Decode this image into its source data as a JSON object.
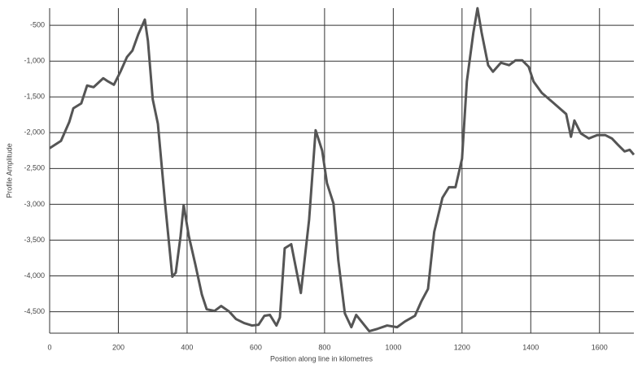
{
  "chart_data": {
    "type": "line",
    "xlabel": "Position along line in kilometres",
    "ylabel": "Profile Amplitude",
    "xlim": [
      0,
      1700
    ],
    "xticks": [
      0,
      200,
      400,
      600,
      800,
      1000,
      1200,
      1400,
      1600
    ],
    "ylim": [
      -4800,
      -260
    ],
    "yticks": [
      -500,
      {
        "value": -1000,
        "label": "-1,000"
      },
      {
        "value": -1500,
        "label": "-1,500"
      },
      {
        "value": -2000,
        "label": "-2,000"
      },
      {
        "value": -2500,
        "label": "-2,500"
      },
      {
        "value": -3000,
        "label": "-3,000"
      },
      {
        "value": -3500,
        "label": "-3,500"
      },
      {
        "value": -4000,
        "label": "-4,000"
      },
      {
        "value": -4500,
        "label": "-4,500"
      }
    ],
    "grid": true,
    "color": "#555555",
    "x": [
      0,
      33,
      57,
      69,
      92,
      109,
      128,
      156,
      170,
      187,
      206,
      225,
      241,
      258,
      277,
      286,
      300,
      315,
      336,
      357,
      367,
      381,
      390,
      405,
      424,
      443,
      457,
      480,
      499,
      523,
      542,
      566,
      589,
      608,
      625,
      641,
      660,
      670,
      684,
      703,
      717,
      731,
      755,
      774,
      793,
      807,
      826,
      840,
      859,
      878,
      892,
      911,
      930,
      954,
      982,
      1011,
      1034,
      1063,
      1082,
      1101,
      1119,
      1143,
      1162,
      1181,
      1200,
      1214,
      1233,
      1245,
      1257,
      1276,
      1290,
      1313,
      1337,
      1356,
      1375,
      1394,
      1408,
      1432,
      1465,
      1503,
      1517,
      1527,
      1546,
      1569,
      1593,
      1617,
      1636,
      1654,
      1673,
      1688,
      1700
    ],
    "values": [
      -2216,
      -2114,
      -1852,
      -1659,
      -1591,
      -1341,
      -1364,
      -1239,
      -1284,
      -1330,
      -1148,
      -943,
      -852,
      -625,
      -420,
      -716,
      -1534,
      -1875,
      -2989,
      -4011,
      -3955,
      -3443,
      -3011,
      -3443,
      -3841,
      -4261,
      -4466,
      -4489,
      -4420,
      -4500,
      -4602,
      -4659,
      -4693,
      -4682,
      -4557,
      -4545,
      -4693,
      -4580,
      -3614,
      -3557,
      -3898,
      -4239,
      -3216,
      -1966,
      -2250,
      -2705,
      -2989,
      -3784,
      -4523,
      -4716,
      -4545,
      -4659,
      -4773,
      -4739,
      -4693,
      -4716,
      -4636,
      -4557,
      -4352,
      -4182,
      -3386,
      -2909,
      -2761,
      -2761,
      -2364,
      -1284,
      -602,
      -261,
      -602,
      -1057,
      -1148,
      -1023,
      -1057,
      -989,
      -989,
      -1080,
      -1284,
      -1443,
      -1580,
      -1739,
      -2057,
      -1830,
      -2011,
      -2080,
      -2034,
      -2034,
      -2080,
      -2170,
      -2261,
      -2239,
      -2307
    ]
  }
}
